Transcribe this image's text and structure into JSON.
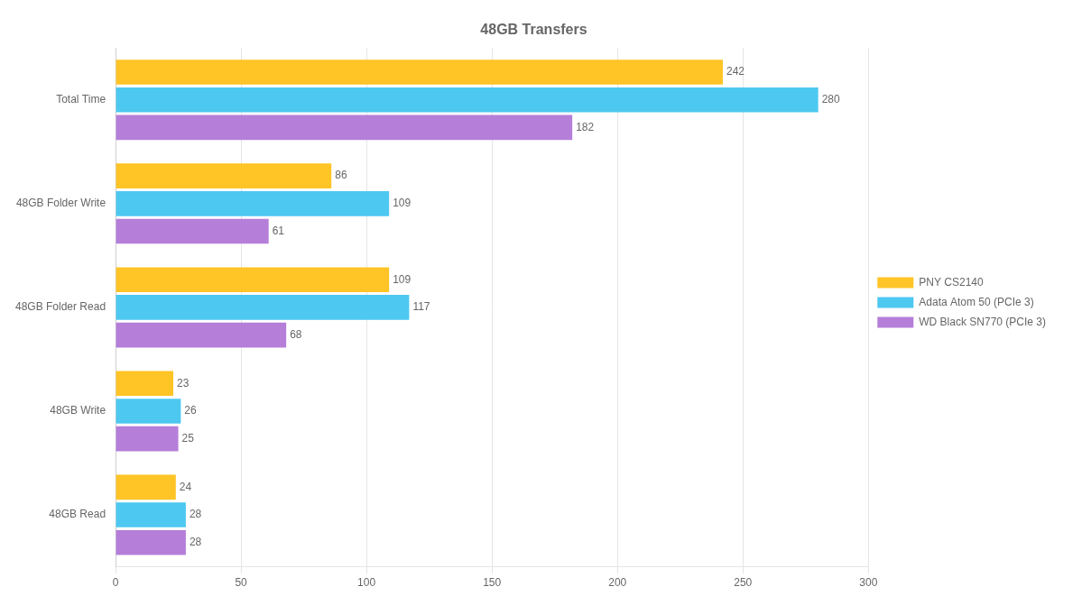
{
  "chart_data": {
    "type": "bar",
    "orientation": "horizontal",
    "title": "48GB Transfers",
    "categories": [
      "Total Time",
      "48GB Folder Write",
      "48GB Folder Read",
      "48GB Write",
      "48GB Read"
    ],
    "series": [
      {
        "name": "PNY CS2140",
        "color": "#FFC425",
        "values": [
          242,
          86,
          109,
          23,
          24
        ]
      },
      {
        "name": "Adata Atom 50 (PCIe 3)",
        "color": "#4DC8F0",
        "values": [
          280,
          109,
          117,
          26,
          28
        ]
      },
      {
        "name": "WD Black SN770 (PCIe 3)",
        "color": "#B57ED9",
        "values": [
          182,
          61,
          68,
          25,
          28
        ]
      }
    ],
    "xlim": [
      0,
      300
    ],
    "xticks": [
      0,
      50,
      100,
      150,
      200,
      250,
      300
    ],
    "grid": true,
    "legend": "right",
    "data_labels": true
  }
}
